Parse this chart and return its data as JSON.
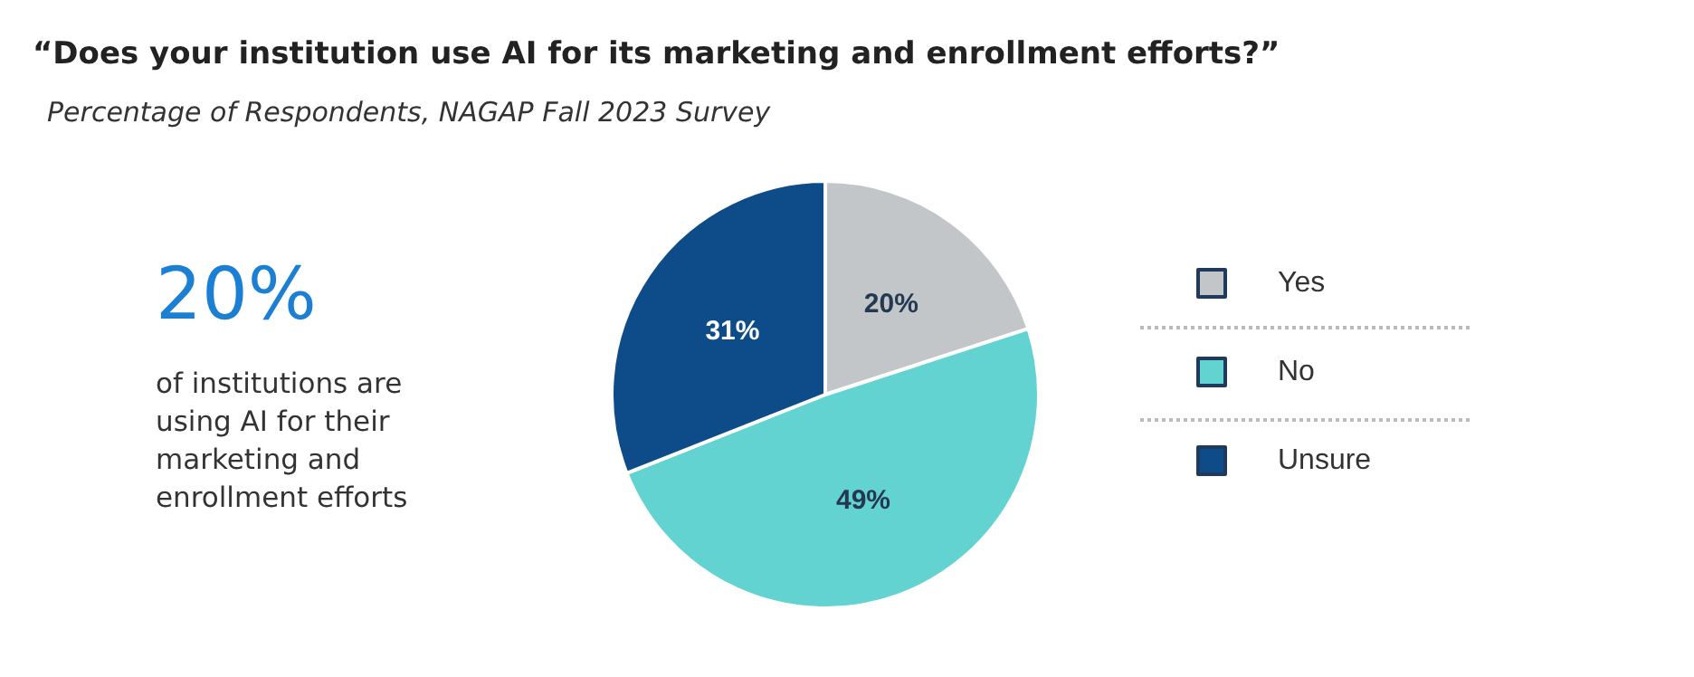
{
  "chart_data": {
    "type": "pie",
    "title": "“Does your institution use AI for its marketing and enrollment efforts?”",
    "subtitle": "Percentage of Respondents, NAGAP Fall 2023 Survey",
    "categories": [
      "Yes",
      "No",
      "Unsure"
    ],
    "values": [
      20,
      49,
      31
    ],
    "colors": [
      "#c3c6c9",
      "#62d3d1",
      "#0d4c89"
    ],
    "value_labels": [
      "20%",
      "49%",
      "31%"
    ],
    "legend": "right",
    "annotations": [
      "20%",
      "of institutions are using AI for their marketing and enrollment efforts"
    ]
  }
}
